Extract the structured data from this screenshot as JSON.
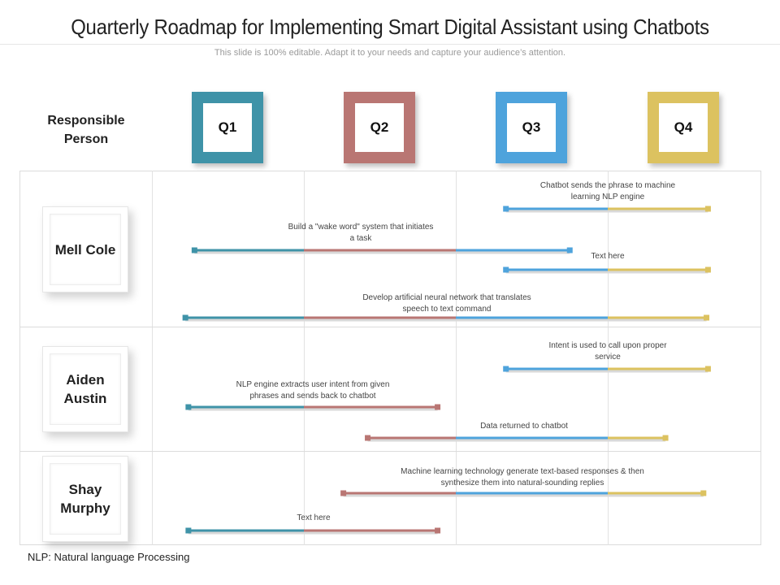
{
  "title": "Quarterly Roadmap for Implementing Smart Digital Assistant using Chatbots",
  "subtitle": "This slide is 100% editable. Adapt it to your needs and capture your audience’s attention.",
  "responsible_header": "Responsible Person",
  "quarters": [
    {
      "label": "Q1",
      "color": "#3f93a8"
    },
    {
      "label": "Q2",
      "color": "#b97673"
    },
    {
      "label": "Q3",
      "color": "#4ea3dc"
    },
    {
      "label": "Q4",
      "color": "#dcc260"
    }
  ],
  "people": [
    {
      "name": "Mell Cole"
    },
    {
      "name": "Aiden Austin"
    },
    {
      "name": "Shay Murphy"
    }
  ],
  "tasks": [
    {
      "label": "Chatbot sends the phrase to machine learning NLP engine",
      "start": 2.33,
      "end": 3.66
    },
    {
      "label": "Build a \"wake word\" system  that initiates  a task",
      "start": 0.28,
      "end": 2.75
    },
    {
      "label": "Text here",
      "start": 2.33,
      "end": 3.66
    },
    {
      "label": "Develop artificial  neural network that translates speech to text command",
      "start": 0.22,
      "end": 3.65
    },
    {
      "label": "Intent is used to call upon proper service",
      "start": 2.33,
      "end": 3.66
    },
    {
      "label": "NLP engine extracts user intent from given phrases and sends back  to chatbot",
      "start": 0.24,
      "end": 1.88
    },
    {
      "label": "Data returned to chatbot",
      "start": 1.42,
      "end": 3.38
    },
    {
      "label": "Machine learning technology generate text-based responses & then synthesize them into natural-sounding  replies",
      "start": 1.26,
      "end": 3.63
    },
    {
      "label": "Text here",
      "start": 0.24,
      "end": 1.88
    }
  ],
  "footnote": "NLP: Natural language Processing"
}
